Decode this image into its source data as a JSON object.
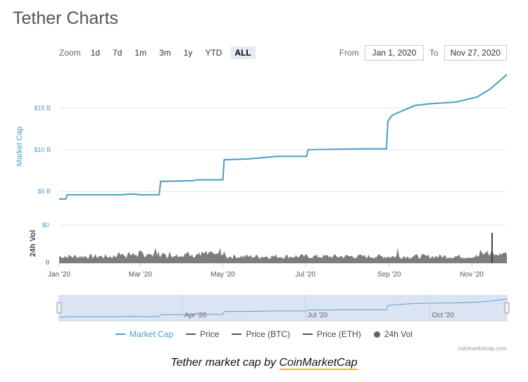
{
  "header": {
    "title": "Tether Charts"
  },
  "zoom": {
    "label": "Zoom",
    "buttons": [
      "1d",
      "7d",
      "1m",
      "3m",
      "1y",
      "YTD",
      "ALL"
    ],
    "active": "ALL"
  },
  "range": {
    "from_label": "From",
    "from_value": "Jan 1, 2020",
    "to_label": "To",
    "to_value": "Nov 27, 2020"
  },
  "colors": {
    "market_cap": "#4a9ec4",
    "volume": "#666666",
    "navigator_fill": "#dbe4f3"
  },
  "chart_data": {
    "type": "line",
    "ylabel": "Market Cap",
    "y_ticks": [
      "$5 B",
      "$10 B",
      "$15 B"
    ],
    "ylim": [
      3.5,
      19.5
    ],
    "x_ticks": [
      "Jan '20",
      "Mar '20",
      "May '20",
      "Jul '20",
      "Sep '20",
      "Nov '20"
    ],
    "series": [
      {
        "name": "Market Cap",
        "x": [
          "2020-01-01",
          "2020-01-06",
          "2020-01-07",
          "2020-02-15",
          "2020-02-25",
          "2020-03-01",
          "2020-03-15",
          "2020-03-16",
          "2020-04-10",
          "2020-04-11",
          "2020-05-01",
          "2020-05-02",
          "2020-05-20",
          "2020-06-10",
          "2020-07-02",
          "2020-07-03",
          "2020-08-10",
          "2020-08-30",
          "2020-08-31",
          "2020-09-03",
          "2020-09-10",
          "2020-09-20",
          "2020-10-01",
          "2020-10-20",
          "2020-11-05",
          "2020-11-15",
          "2020-11-27"
        ],
        "values": [
          4.1,
          4.1,
          4.6,
          4.6,
          4.7,
          4.6,
          4.6,
          6.2,
          6.3,
          6.4,
          6.4,
          8.8,
          8.9,
          9.2,
          9.2,
          10.0,
          10.1,
          10.1,
          13.4,
          14.1,
          14.6,
          15.3,
          15.5,
          15.7,
          16.3,
          17.3,
          19.0
        ]
      },
      {
        "name": "Price"
      },
      {
        "name": "Price (BTC)"
      },
      {
        "name": "Price (ETH)"
      },
      {
        "name": "24h Vol"
      }
    ],
    "volume": {
      "ylabel": "24h Vol",
      "y_ticks": [
        "$0",
        "0"
      ]
    },
    "navigator_ticks": [
      "Apr '20",
      "Jul '20",
      "Oct '20"
    ]
  },
  "credit": "coinmarketcap.com",
  "caption": {
    "prefix": "Tether market cap by ",
    "brand": "CoinMarketCap"
  }
}
